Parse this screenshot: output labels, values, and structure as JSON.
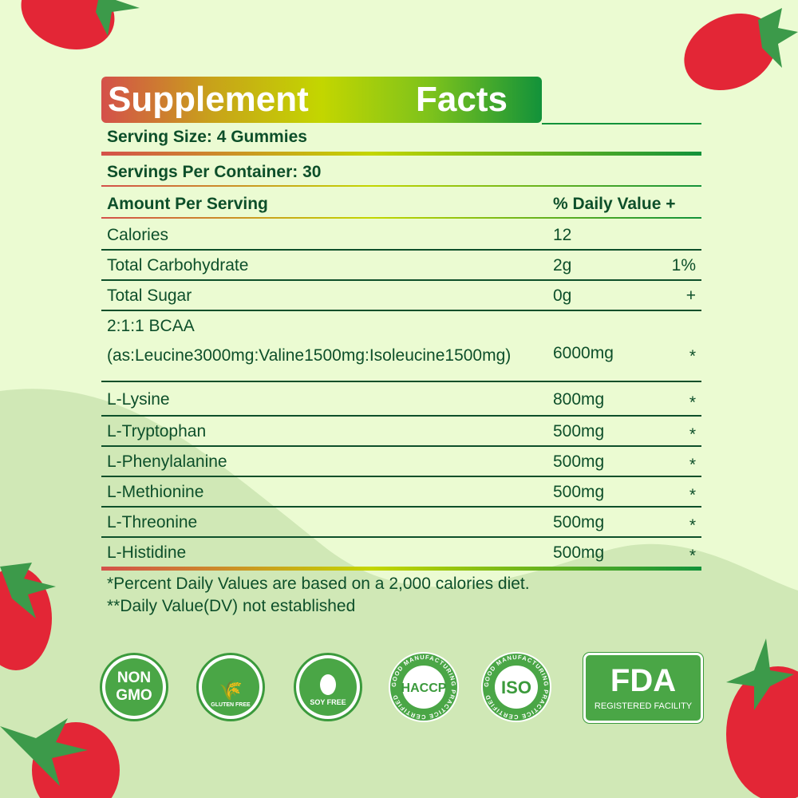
{
  "title": {
    "word1": "Supplement",
    "word2": "Facts"
  },
  "serving_size": "Serving Size: 4 Gummies",
  "servings_per_container": "Servings Per Container: 30",
  "header": {
    "amount": "Amount Per Serving",
    "dv": "% Daily Value +"
  },
  "rows": [
    {
      "name": "Calories",
      "amount": "12",
      "dv": ""
    },
    {
      "name": "Total Carbohydrate",
      "amount": "2g",
      "dv": "1%"
    },
    {
      "name": "Total Sugar",
      "amount": "0g",
      "dv": "+"
    },
    {
      "name": "2:1:1 BCAA",
      "name2": "(as:Leucine3000mg:Valine1500mg:Isoleucine1500mg)",
      "amount": "6000mg",
      "dv": "*"
    },
    {
      "name": "L-Lysine",
      "amount": "800mg",
      "dv": "*"
    },
    {
      "name": "L-Tryptophan",
      "amount": "500mg",
      "dv": "*"
    },
    {
      "name": "L-Phenylalanine",
      "amount": "500mg",
      "dv": "*"
    },
    {
      "name": "L-Methionine",
      "amount": "500mg",
      "dv": "*"
    },
    {
      "name": "L-Threonine",
      "amount": "500mg",
      "dv": "*"
    },
    {
      "name": "L-Histidine",
      "amount": "500mg",
      "dv": "*"
    }
  ],
  "footnotes": [
    "*Percent Daily Values are based on a 2,000 calories diet.",
    "**Daily Value(DV) not established"
  ],
  "badges": {
    "nongmo": [
      "NON",
      "GMO"
    ],
    "gluten": "GLUTEN FREE",
    "soy": "SOY FREE",
    "haccp": "HACCP",
    "iso": "ISO",
    "gmp_ring": "GOOD MANUFACTURING PRACTICE CERTIFIED",
    "fda": "FDA",
    "fda_sub": "REGISTERED FACILITY"
  },
  "colors": {
    "text": "#0d4f2a",
    "accent_green": "#4aa646",
    "background": "#ebfbd2"
  }
}
